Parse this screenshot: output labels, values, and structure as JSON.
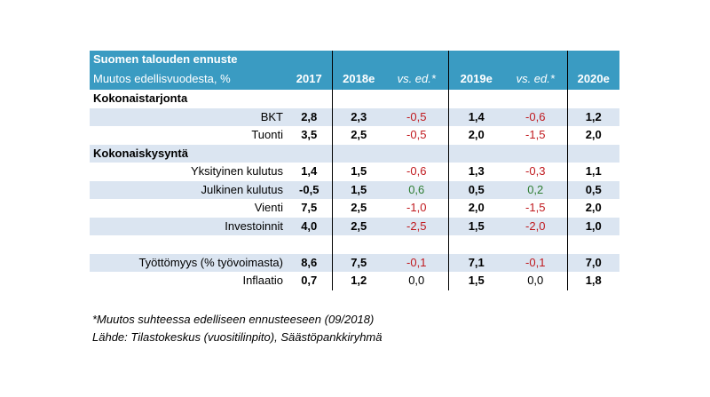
{
  "table": {
    "title": "Suomen talouden ennuste",
    "subtitle": "Muutos edellisvuodesta, %",
    "columns": [
      "2017",
      "2018e",
      "vs. ed.*",
      "2019e",
      "vs. ed.*",
      "2020e"
    ],
    "sections": {
      "supply": "Kokonaistarjonta",
      "demand": "Kokonaiskysyntä"
    },
    "rows": {
      "bkt": {
        "label": "BKT",
        "values": [
          "2,8",
          "2,3",
          "-0,5",
          "1,4",
          "-0,6",
          "1,2"
        ]
      },
      "tuonti": {
        "label": "Tuonti",
        "values": [
          "3,5",
          "2,5",
          "-0,5",
          "2,0",
          "-1,5",
          "2,0"
        ]
      },
      "yksityinen": {
        "label": "Yksityinen kulutus",
        "values": [
          "1,4",
          "1,5",
          "-0,6",
          "1,3",
          "-0,3",
          "1,1"
        ]
      },
      "julkinen": {
        "label": "Julkinen kulutus",
        "values": [
          "-0,5",
          "1,5",
          "0,6",
          "0,5",
          "0,2",
          "0,5"
        ]
      },
      "vienti": {
        "label": "Vienti",
        "values": [
          "7,5",
          "2,5",
          "-1,0",
          "2,0",
          "-1,5",
          "2,0"
        ]
      },
      "investoinnit": {
        "label": "Investoinnit",
        "values": [
          "4,0",
          "2,5",
          "-2,5",
          "1,5",
          "-2,0",
          "1,0"
        ]
      },
      "tyottomyys": {
        "label": "Työttömyys (% työvoimasta)",
        "values": [
          "8,6",
          "7,5",
          "-0,1",
          "7,1",
          "-0,1",
          "7,0"
        ]
      },
      "inflaatio": {
        "label": "Inflaatio",
        "values": [
          "0,7",
          "1,2",
          "0,0",
          "1,5",
          "0,0",
          "1,8"
        ]
      }
    }
  },
  "notes": {
    "footnote": "*Muutos suhteessa edelliseen ennusteeseen (09/2018)",
    "source": "Lähde: Tilastokeskus (vuositilinpito), Säästöpankkiryhmä"
  },
  "colors": {
    "header_bg": "#3a9bc2",
    "row_shade": "#dbe5f1",
    "negative": "#c0191e",
    "positive": "#2e7d32"
  }
}
